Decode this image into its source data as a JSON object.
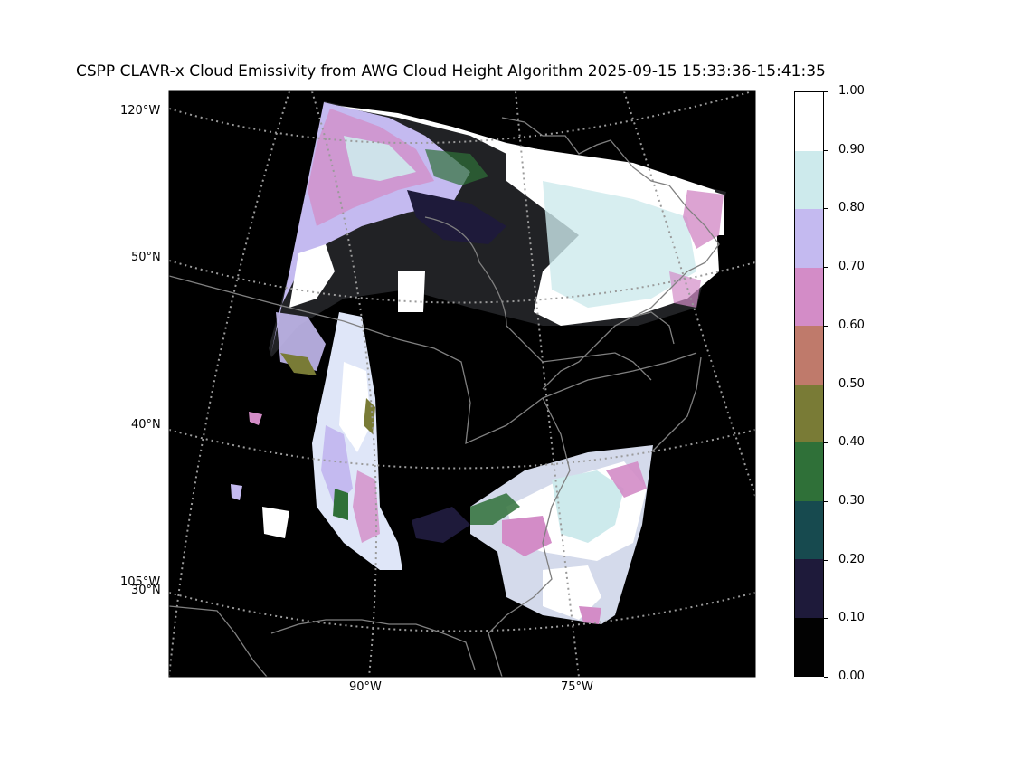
{
  "title": "CSPP CLAVR-x Cloud Emissivity from AWG Cloud Height Algorithm 2025-09-15 15:33:36-15:41:35",
  "map": {
    "lat_labels": [
      "50°N",
      "40°N",
      "30°N"
    ],
    "lon_labels_left": [
      "120°W",
      "105°W"
    ],
    "lon_labels_bottom": [
      "90°W",
      "75°W"
    ]
  },
  "colorbar": {
    "ticks": [
      "0.00",
      "0.10",
      "0.20",
      "0.30",
      "0.40",
      "0.50",
      "0.60",
      "0.70",
      "0.80",
      "0.90",
      "1.00"
    ],
    "colors": [
      "#020202",
      "#1e1a3a",
      "#174a4f",
      "#2f7038",
      "#797b36",
      "#bf7a6b",
      "#d38cc7",
      "#c4baf0",
      "#cdeaec",
      "#ffffff"
    ]
  },
  "colors": {
    "background": "#000000",
    "coast": "#808080",
    "graticule": "#9a9a9a"
  }
}
